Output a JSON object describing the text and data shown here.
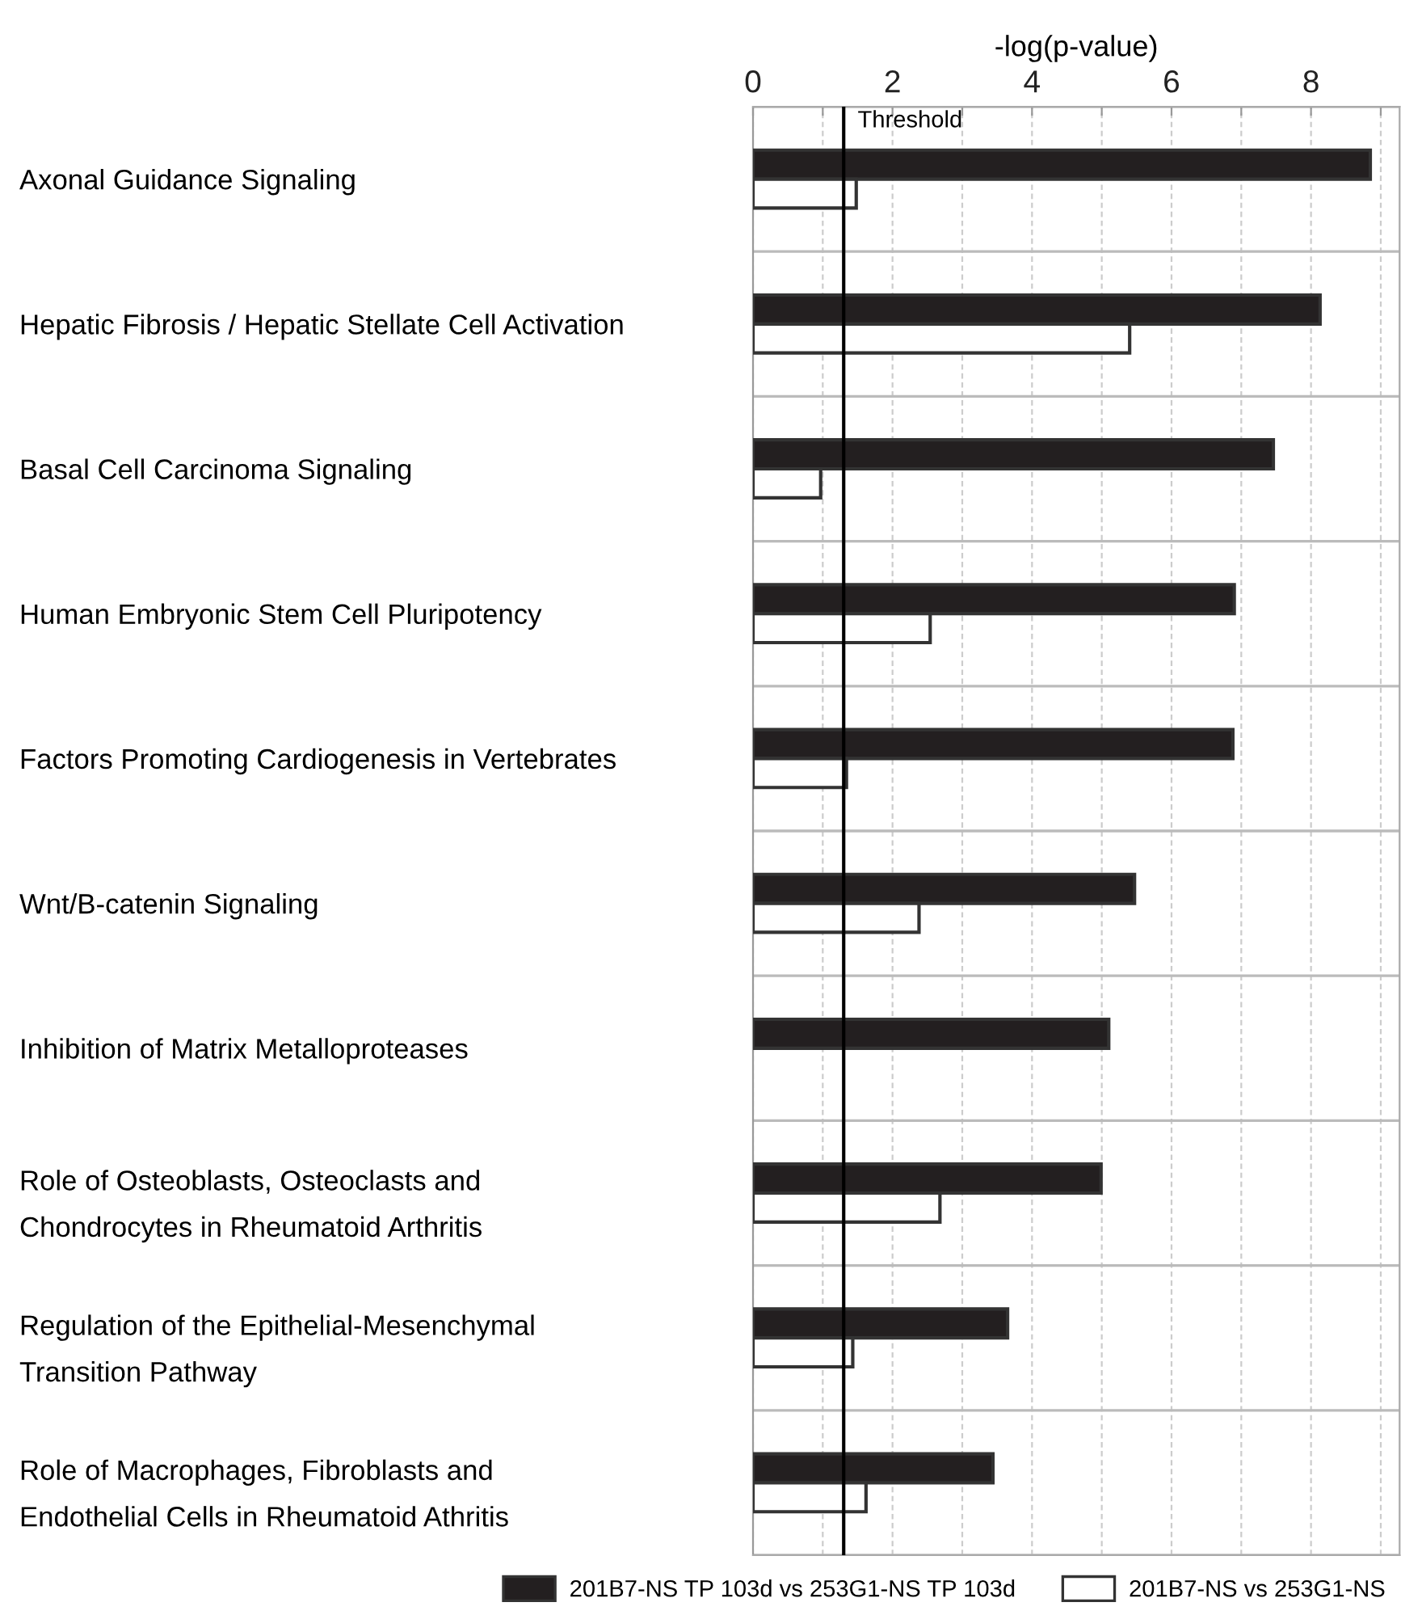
{
  "chart_data": {
    "type": "bar",
    "orientation": "horizontal",
    "xlabel": "-log(p-value)",
    "categories": [
      "Axonal Guidance Signaling",
      "Hepatic Fibrosis / Hepatic Stellate Cell Activation",
      "Basal Cell Carcinoma Signaling",
      "Human Embryonic Stem Cell Pluripotency",
      "Factors Promoting Cardiogenesis in Vertebrates",
      "Wnt/B-catenin Signaling",
      "Inhibition of Matrix Metalloproteases",
      "Role of Osteoblasts, Osteoclasts and\nChondrocytes in Rheumatoid Arthritis",
      "Regulation of the Epithelial-Mesenchymal\nTransition Pathway",
      "Role of Macrophages, Fibroblasts and\nEndothelial Cells in Rheumatoid Athritis"
    ],
    "series": [
      {
        "name": "201B7-NS TP 103d vs 253G1-NS TP 103d",
        "color": "#231f20",
        "values": [
          8.85,
          8.13,
          7.46,
          6.9,
          6.88,
          5.47,
          5.1,
          4.99,
          3.65,
          3.44
        ]
      },
      {
        "name": "201B7-NS vs 253G1-NS",
        "color": "#ffffff",
        "values": [
          1.48,
          5.4,
          0.97,
          2.54,
          1.34,
          2.38,
          null,
          2.68,
          1.43,
          1.62
        ]
      }
    ],
    "xlim": [
      0,
      9.27
    ],
    "xticks": [
      0,
      {
        "value": 1,
        "label": null
      },
      2,
      {
        "value": 3,
        "label": null
      },
      4,
      {
        "value": 5,
        "label": null
      },
      6,
      {
        "value": 7,
        "label": null
      },
      8,
      {
        "value": 9,
        "label": null
      }
    ],
    "ref_lines": [
      {
        "axis": "x",
        "value": 1.3,
        "label": "Threshold",
        "color": "#000000"
      }
    ],
    "grid": true,
    "legend": "bottom"
  }
}
